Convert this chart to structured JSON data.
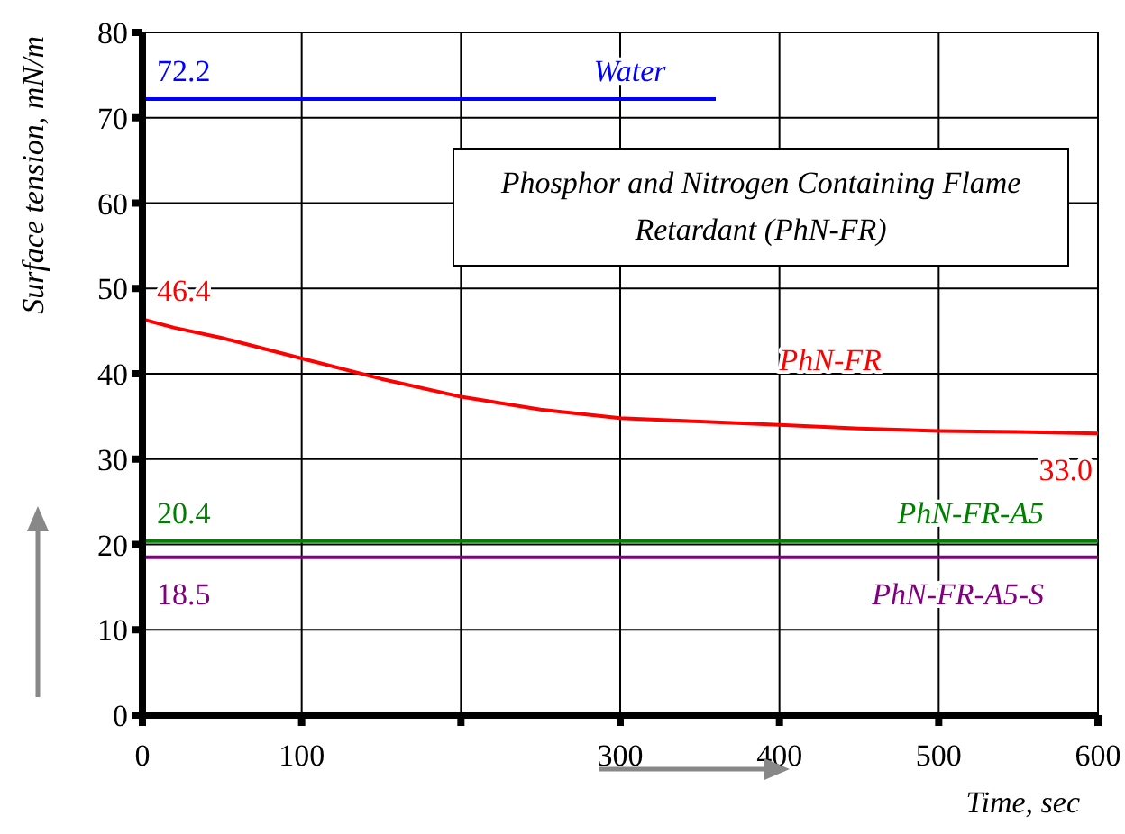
{
  "chart_data": {
    "type": "line",
    "title": "Phosphor and Nitrogen Containing Flame Retardant (PhN-FR)",
    "xlabel": "Time, sec",
    "ylabel": "Surface tension, mN/m",
    "xlim": [
      0,
      600
    ],
    "xticks": [
      0,
      100,
      {
        "value": 200,
        "label": null
      },
      300,
      400,
      500,
      600
    ],
    "ylim": [
      0,
      80
    ],
    "yticks": [
      0,
      10,
      20,
      30,
      40,
      50,
      60,
      70,
      80
    ],
    "grid": true,
    "legend": false,
    "marker": "none",
    "line_style": "solid",
    "series": [
      {
        "name": "Water",
        "color": "#0000ff",
        "x": [
          0,
          360
        ],
        "values": [
          72.2,
          72.2
        ]
      },
      {
        "name": "PhN-FR",
        "color": "#ff0000",
        "x": [
          0,
          20,
          50,
          100,
          150,
          200,
          250,
          300,
          350,
          400,
          450,
          500,
          550,
          600
        ],
        "values": [
          46.4,
          45.4,
          44.2,
          41.8,
          39.4,
          37.3,
          35.8,
          34.8,
          34.4,
          34.0,
          33.6,
          33.3,
          33.2,
          33.0
        ]
      },
      {
        "name": "PhN-FR-A5",
        "color": "#008000",
        "x": [
          0,
          600
        ],
        "values": [
          20.4,
          20.4
        ]
      },
      {
        "name": "PhN-FR-A5-S",
        "color": "#800080",
        "x": [
          0,
          600
        ],
        "values": [
          18.5,
          18.5
        ]
      }
    ],
    "annotations": [
      {
        "text": "72.2",
        "y": 72.2
      },
      {
        "text": "46.4",
        "y": 46.4
      },
      {
        "text": "33.0",
        "x": 600,
        "y": 33.0
      },
      {
        "text": "20.4",
        "y": 20.4
      },
      {
        "text": "18.5",
        "y": 18.5
      }
    ]
  }
}
